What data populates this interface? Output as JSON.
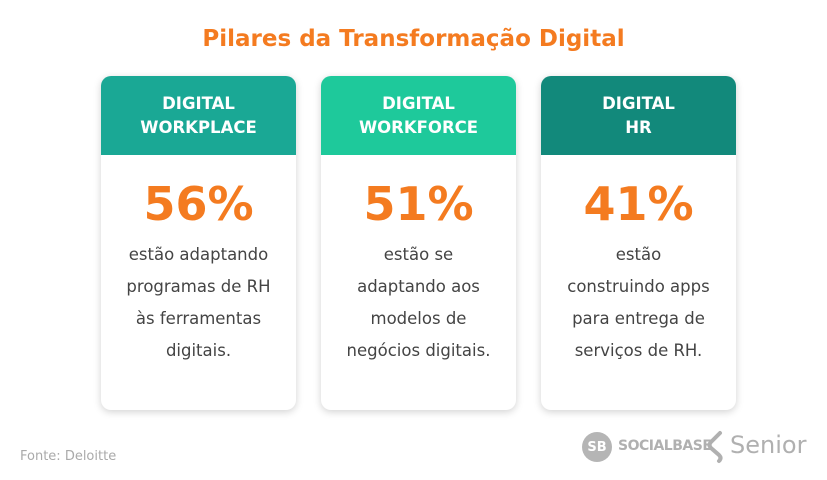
{
  "title": "Pilares da Transformação Digital",
  "cards": [
    {
      "header": [
        "DIGITAL",
        "WORKPLACE"
      ],
      "percent": "56%",
      "description": [
        "estão adaptando",
        "programas de RH",
        "às ferramentas",
        "digitais."
      ]
    },
    {
      "header": [
        "DIGITAL",
        "WORKFORCE"
      ],
      "percent": "51%",
      "description": [
        "estão se",
        "adaptando aos",
        "modelos de",
        "negócios digitais."
      ]
    },
    {
      "header": [
        "DIGITAL",
        "HR"
      ],
      "percent": "41%",
      "description": [
        "estão",
        "construindo apps",
        "para entrega de",
        "serviços de RH."
      ]
    }
  ],
  "source": "Fonte: Deloitte",
  "logos": {
    "socialbase_mark": "SB",
    "socialbase": "SOCIALBASE",
    "senior": "Senior"
  }
}
